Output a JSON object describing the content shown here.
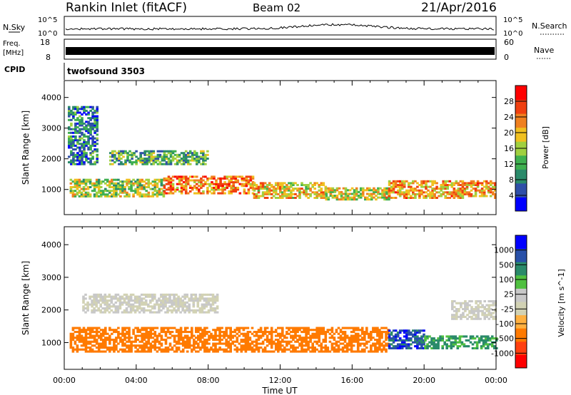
{
  "header": {
    "radar": "Rankin Inlet (fitACF)",
    "beam": "Beam 02",
    "date": "21/Apr/2016"
  },
  "strips": {
    "nsky": {
      "label": "N.Sky",
      "tick_top": "10^5",
      "tick_bottom": "10^0",
      "right_label": "N.Search"
    },
    "freq": {
      "label_line1": "Freq.",
      "label_line2": "[MHz]",
      "tick_top": "18",
      "tick_bottom": "8",
      "right_tick_top": "60",
      "right_tick_bottom": "0",
      "right_label": "Nave"
    },
    "cpid": {
      "label": "CPID",
      "value": "twofsound 3503"
    }
  },
  "colors": {
    "power_scale": [
      "#0000ff",
      "#2f4fa8",
      "#2a8a6a",
      "#3fb050",
      "#a0d040",
      "#f0c020",
      "#f08020",
      "#f04010",
      "#ff0000"
    ],
    "velocity_scale": [
      "#ff0000",
      "#ff4010",
      "#ff7a00",
      "#ffb040",
      "#d2d2b4",
      "#c8c8c8",
      "#50c040",
      "#2a8a6a",
      "#2850a8",
      "#0000ff"
    ]
  },
  "chart_data": [
    {
      "type": "heatmap",
      "quantity": "Power",
      "ylabel": "Slant Range [km]",
      "xlabel": "Time UT",
      "x_ticks": [
        "00:00",
        "04:00",
        "08:00",
        "12:00",
        "16:00",
        "20:00",
        "00:00"
      ],
      "x_range_hours": [
        0,
        24
      ],
      "y_ticks": [
        1000,
        2000,
        3000,
        4000
      ],
      "y_range_km": [
        180,
        4550
      ],
      "colorbar": {
        "label": "Power [dB]",
        "ticks": [
          4,
          8,
          12,
          16,
          20,
          24,
          28
        ],
        "range": [
          0,
          32
        ]
      },
      "bands": [
        {
          "t0": 0.3,
          "t1": 5.5,
          "r0": 750,
          "r1": 1300,
          "value": 16
        },
        {
          "t0": 5.5,
          "t1": 10.5,
          "r0": 850,
          "r1": 1450,
          "value": 24
        },
        {
          "t0": 10.5,
          "t1": 14.5,
          "r0": 700,
          "r1": 1200,
          "value": 20
        },
        {
          "t0": 14.5,
          "t1": 18.0,
          "r0": 650,
          "r1": 1050,
          "value": 18
        },
        {
          "t0": 18.0,
          "t1": 24.0,
          "r0": 700,
          "r1": 1250,
          "value": 22
        },
        {
          "t0": 2.5,
          "t1": 8.0,
          "r0": 1800,
          "r1": 2250,
          "value": 12
        },
        {
          "t0": 0.2,
          "t1": 1.8,
          "r0": 1800,
          "r1": 3700,
          "value": 8
        }
      ]
    },
    {
      "type": "heatmap",
      "quantity": "Velocity",
      "ylabel": "Slant Range [km]",
      "xlabel": "Time UT",
      "x_ticks": [
        "00:00",
        "04:00",
        "08:00",
        "12:00",
        "16:00",
        "20:00",
        "00:00"
      ],
      "x_range_hours": [
        0,
        24
      ],
      "y_ticks": [
        1000,
        2000,
        3000,
        4000
      ],
      "y_range_km": [
        180,
        4550
      ],
      "colorbar": {
        "label": "Velocity [m s^-1]",
        "ticks": [
          -1000,
          -500,
          -100,
          -25,
          25,
          100,
          500,
          1000
        ]
      },
      "bands": [
        {
          "t0": 0.3,
          "t1": 18.0,
          "r0": 700,
          "r1": 1450,
          "value": -300
        },
        {
          "t0": 1.0,
          "t1": 8.5,
          "r0": 1900,
          "r1": 2500,
          "value": 0
        },
        {
          "t0": 18.0,
          "t1": 20.0,
          "r0": 800,
          "r1": 1400,
          "value": 800
        },
        {
          "t0": 20.0,
          "t1": 24.0,
          "r0": 800,
          "r1": 1200,
          "value": 120
        },
        {
          "t0": 21.5,
          "t1": 24.0,
          "r0": 1700,
          "r1": 2300,
          "value": 0
        }
      ]
    }
  ]
}
